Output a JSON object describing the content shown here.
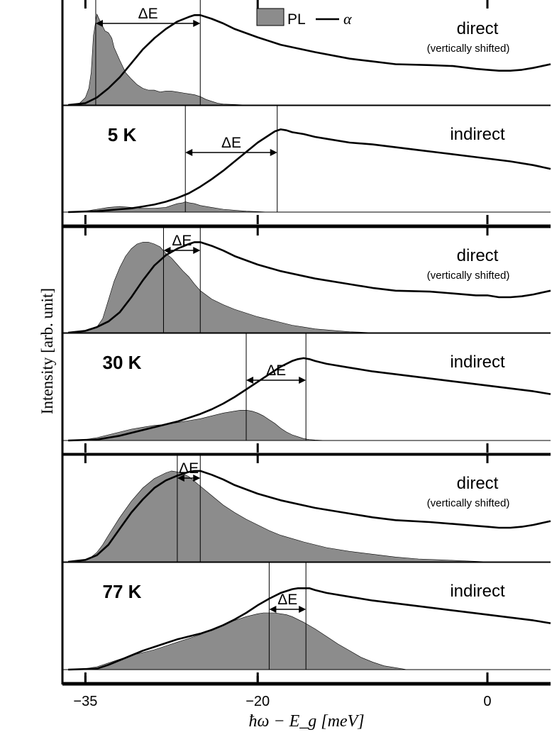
{
  "chart_data": {
    "type": "area",
    "xlabel": "ħω − E_g [meV]",
    "ylabel": "Intensity [arb. unit]",
    "xlim": [
      -37,
      5.5
    ],
    "xticks": [
      -35,
      -20,
      0
    ],
    "xtick_labels": [
      "−35",
      "−20",
      "0"
    ],
    "legend": {
      "pl": "PL",
      "alpha": "α",
      "position": "top-center"
    },
    "colors": {
      "pl_fill": "#8c8c8c",
      "alpha_line": "#000000",
      "frame": "#000000"
    },
    "delta_label": "ΔE",
    "panels": [
      {
        "temperature": "5 K",
        "subplots": [
          {
            "label": "direct",
            "sublabel": "(vertically shifted)",
            "markers": [
              -34.1,
              -25.0
            ],
            "pl": {
              "x": [
                -36.5,
                -35.5,
                -35,
                -34.7,
                -34.5,
                -34.3,
                -34.0,
                -33.7,
                -33.5,
                -33.3,
                -33.0,
                -32.7,
                -32.5,
                -32.0,
                -31.5,
                -31.0,
                -30.5,
                -30.0,
                -29.5,
                -29.0,
                -28.5,
                -28.0,
                -27.5,
                -27.0,
                -26.5,
                -26.0,
                -25.5,
                -25.0,
                -24.5,
                -24.0,
                -23.5,
                -23.0,
                -22.0,
                -21.0,
                -20.0
              ],
              "y": [
                0,
                0.02,
                0.08,
                0.18,
                0.35,
                0.75,
                0.98,
                0.9,
                0.85,
                0.8,
                0.78,
                0.72,
                0.62,
                0.48,
                0.35,
                0.28,
                0.22,
                0.18,
                0.16,
                0.16,
                0.14,
                0.15,
                0.15,
                0.14,
                0.13,
                0.12,
                0.11,
                0.09,
                0.06,
                0.04,
                0.02,
                0.01,
                0.005,
                0,
                0
              ]
            },
            "alpha": {
              "x": [
                -36.5,
                -35,
                -34,
                -33,
                -32,
                -31,
                -30,
                -29,
                -28,
                -27,
                -26,
                -25.5,
                -25,
                -24,
                -23,
                -22,
                -20,
                -18,
                -15,
                -12,
                -10,
                -8,
                -5,
                -3,
                -1,
                0,
                1,
                2,
                3,
                4,
                5.5
              ],
              "y": [
                0,
                0.02,
                0.08,
                0.18,
                0.3,
                0.45,
                0.6,
                0.72,
                0.82,
                0.9,
                0.95,
                0.97,
                0.97,
                0.93,
                0.88,
                0.82,
                0.73,
                0.65,
                0.57,
                0.5,
                0.47,
                0.44,
                0.43,
                0.42,
                0.39,
                0.38,
                0.37,
                0.37,
                0.38,
                0.4,
                0.44
              ]
            }
          },
          {
            "label": "indirect",
            "markers": [
              -26.3,
              -18.3
            ],
            "pl": {
              "x": [
                -36.5,
                -35,
                -34,
                -33,
                -32,
                -31,
                -30,
                -29,
                -28,
                -27.5,
                -27,
                -26.5,
                -26.3,
                -26,
                -25.5,
                -25,
                -24.5,
                -24,
                -23,
                -22,
                -21,
                -20,
                -19
              ],
              "y": [
                0,
                0.01,
                0.03,
                0.05,
                0.06,
                0.05,
                0.04,
                0.04,
                0.05,
                0.07,
                0.09,
                0.1,
                0.11,
                0.1,
                0.09,
                0.07,
                0.06,
                0.05,
                0.03,
                0.02,
                0.01,
                0.005,
                0
              ]
            },
            "alpha": {
              "x": [
                -36.5,
                -34,
                -33,
                -32,
                -31,
                -30,
                -29,
                -28,
                -27,
                -26,
                -25,
                -24,
                -23,
                -22,
                -21,
                -20,
                -19,
                -18.5,
                -18,
                -17.5,
                -17,
                -16,
                -15,
                -14,
                -12,
                -10,
                -8,
                -6,
                -4,
                -2,
                0,
                2,
                4,
                5.5
              ],
              "y": [
                0,
                0.01,
                0.02,
                0.03,
                0.04,
                0.06,
                0.08,
                0.11,
                0.15,
                0.2,
                0.27,
                0.35,
                0.44,
                0.54,
                0.64,
                0.74,
                0.82,
                0.86,
                0.88,
                0.87,
                0.85,
                0.83,
                0.8,
                0.78,
                0.74,
                0.72,
                0.69,
                0.66,
                0.63,
                0.6,
                0.57,
                0.54,
                0.5,
                0.46
              ]
            }
          }
        ]
      },
      {
        "temperature": "30 K",
        "subplots": [
          {
            "label": "direct",
            "sublabel": "(vertically shifted)",
            "markers": [
              -28.2,
              -25.0
            ],
            "pl": {
              "x": [
                -36.5,
                -35,
                -34,
                -33.5,
                -33,
                -32.5,
                -32,
                -31.5,
                -31,
                -30.5,
                -30,
                -29.5,
                -29,
                -28.5,
                -28,
                -27.5,
                -27,
                -26.5,
                -26,
                -25.5,
                -25,
                -24,
                -23,
                -22,
                -21,
                -20,
                -19,
                -18,
                -17,
                -16,
                -15,
                -14,
                -13,
                -12,
                -10
              ],
              "y": [
                0,
                0.02,
                0.06,
                0.15,
                0.35,
                0.55,
                0.7,
                0.82,
                0.9,
                0.95,
                0.97,
                0.97,
                0.95,
                0.92,
                0.85,
                0.8,
                0.73,
                0.66,
                0.6,
                0.52,
                0.45,
                0.36,
                0.3,
                0.25,
                0.21,
                0.17,
                0.14,
                0.11,
                0.08,
                0.06,
                0.04,
                0.03,
                0.02,
                0.01,
                0
              ]
            },
            "alpha": {
              "x": [
                -36.5,
                -35,
                -34,
                -33,
                -32,
                -31,
                -30,
                -29,
                -28,
                -27,
                -26,
                -25.5,
                -25,
                -24,
                -23,
                -22,
                -20,
                -18,
                -15,
                -12,
                -10,
                -8,
                -5,
                -3,
                -1,
                0,
                1,
                2,
                3,
                4,
                5.5
              ],
              "y": [
                0,
                0.02,
                0.06,
                0.12,
                0.22,
                0.38,
                0.56,
                0.72,
                0.83,
                0.9,
                0.95,
                0.97,
                0.97,
                0.93,
                0.88,
                0.82,
                0.73,
                0.66,
                0.58,
                0.52,
                0.48,
                0.45,
                0.44,
                0.42,
                0.4,
                0.4,
                0.38,
                0.38,
                0.39,
                0.41,
                0.45
              ]
            }
          },
          {
            "label": "indirect",
            "markers": [
              -21.0,
              -15.8
            ],
            "pl": {
              "x": [
                -36.5,
                -35,
                -34,
                -33,
                -32,
                -31,
                -30,
                -29,
                -28,
                -27,
                -26,
                -25,
                -24,
                -23,
                -22,
                -21.5,
                -21,
                -20.5,
                -20,
                -19.5,
                -19,
                -18.5,
                -18,
                -17.5,
                -17,
                -16.5,
                -16,
                -15.5,
                -15,
                -14,
                -13
              ],
              "y": [
                0,
                0.01,
                0.03,
                0.06,
                0.09,
                0.12,
                0.14,
                0.16,
                0.17,
                0.19,
                0.21,
                0.23,
                0.26,
                0.29,
                0.31,
                0.32,
                0.32,
                0.31,
                0.29,
                0.26,
                0.22,
                0.18,
                0.13,
                0.09,
                0.06,
                0.04,
                0.02,
                0.01,
                0.005,
                0,
                0
              ]
            },
            "alpha": {
              "x": [
                -36.5,
                -34,
                -33,
                -32,
                -31,
                -30,
                -29,
                -28,
                -27,
                -26,
                -25,
                -24,
                -23,
                -22,
                -21,
                -20,
                -19,
                -18,
                -17,
                -16.5,
                -16,
                -15.5,
                -15,
                -14,
                -12,
                -10,
                -8,
                -6,
                -4,
                -2,
                0,
                2,
                4,
                5.5
              ],
              "y": [
                0,
                0.01,
                0.03,
                0.05,
                0.08,
                0.11,
                0.14,
                0.17,
                0.2,
                0.24,
                0.28,
                0.33,
                0.39,
                0.46,
                0.54,
                0.62,
                0.7,
                0.78,
                0.84,
                0.86,
                0.87,
                0.86,
                0.84,
                0.81,
                0.77,
                0.73,
                0.7,
                0.67,
                0.64,
                0.61,
                0.58,
                0.55,
                0.52,
                0.49
              ]
            }
          }
        ]
      },
      {
        "temperature": "77 K",
        "subplots": [
          {
            "label": "direct",
            "sublabel": "(vertically shifted)",
            "markers": [
              -27.0,
              -25.0
            ],
            "pl": {
              "x": [
                -36.5,
                -35,
                -34.5,
                -34,
                -33.5,
                -33,
                -32,
                -31,
                -30,
                -29,
                -28,
                -27.5,
                -27,
                -26.5,
                -26,
                -25.5,
                -25,
                -24,
                -23,
                -22,
                -21,
                -20,
                -19,
                -18,
                -16,
                -14,
                -12,
                -10,
                -8,
                -6,
                -4,
                -2,
                0
              ],
              "y": [
                0,
                0.02,
                0.05,
                0.1,
                0.18,
                0.28,
                0.47,
                0.64,
                0.78,
                0.88,
                0.94,
                0.96,
                0.95,
                0.93,
                0.9,
                0.85,
                0.8,
                0.7,
                0.6,
                0.52,
                0.45,
                0.39,
                0.33,
                0.28,
                0.21,
                0.15,
                0.11,
                0.08,
                0.05,
                0.03,
                0.02,
                0.01,
                0
              ]
            },
            "alpha": {
              "x": [
                -36.5,
                -35,
                -34,
                -33,
                -32,
                -31,
                -30,
                -29,
                -28,
                -27,
                -26,
                -25.5,
                -25,
                -24,
                -23,
                -22,
                -20,
                -18,
                -15,
                -12,
                -10,
                -8,
                -5,
                -3,
                -1,
                0,
                1,
                2,
                3,
                4,
                5.5
              ],
              "y": [
                0,
                0.02,
                0.07,
                0.18,
                0.35,
                0.52,
                0.66,
                0.78,
                0.86,
                0.91,
                0.95,
                0.96,
                0.96,
                0.92,
                0.87,
                0.81,
                0.72,
                0.65,
                0.57,
                0.51,
                0.47,
                0.44,
                0.42,
                0.4,
                0.38,
                0.37,
                0.36,
                0.36,
                0.37,
                0.39,
                0.43
              ]
            }
          },
          {
            "label": "indirect",
            "markers": [
              -19.0,
              -15.8
            ],
            "pl": {
              "x": [
                -36.5,
                -35,
                -34,
                -33,
                -32,
                -31,
                -30,
                -29,
                -28,
                -27,
                -26,
                -25,
                -24,
                -23,
                -22,
                -21,
                -20,
                -19.5,
                -19,
                -18.5,
                -18,
                -17.5,
                -17,
                -16,
                -15,
                -14,
                -13,
                -12,
                -11,
                -10,
                -9,
                -8,
                -7
              ],
              "y": [
                0,
                0.01,
                0.03,
                0.07,
                0.11,
                0.15,
                0.18,
                0.21,
                0.25,
                0.29,
                0.33,
                0.37,
                0.42,
                0.47,
                0.52,
                0.56,
                0.59,
                0.6,
                0.6,
                0.6,
                0.59,
                0.58,
                0.56,
                0.5,
                0.43,
                0.35,
                0.27,
                0.2,
                0.13,
                0.08,
                0.04,
                0.02,
                0
              ]
            },
            "alpha": {
              "x": [
                -36.5,
                -34,
                -33,
                -32,
                -31,
                -30,
                -29,
                -28,
                -27,
                -26,
                -25,
                -24,
                -23,
                -22,
                -21,
                -20,
                -19,
                -18,
                -17,
                -16.5,
                -16,
                -15.5,
                -15,
                -14,
                -12,
                -10,
                -8,
                -6,
                -4,
                -2,
                0,
                2,
                4,
                5.5
              ],
              "y": [
                0,
                0.01,
                0.05,
                0.1,
                0.15,
                0.2,
                0.24,
                0.28,
                0.32,
                0.35,
                0.38,
                0.42,
                0.47,
                0.53,
                0.6,
                0.68,
                0.75,
                0.81,
                0.85,
                0.86,
                0.86,
                0.86,
                0.84,
                0.81,
                0.77,
                0.73,
                0.7,
                0.67,
                0.64,
                0.61,
                0.58,
                0.55,
                0.52,
                0.49
              ]
            }
          }
        ]
      }
    ]
  }
}
